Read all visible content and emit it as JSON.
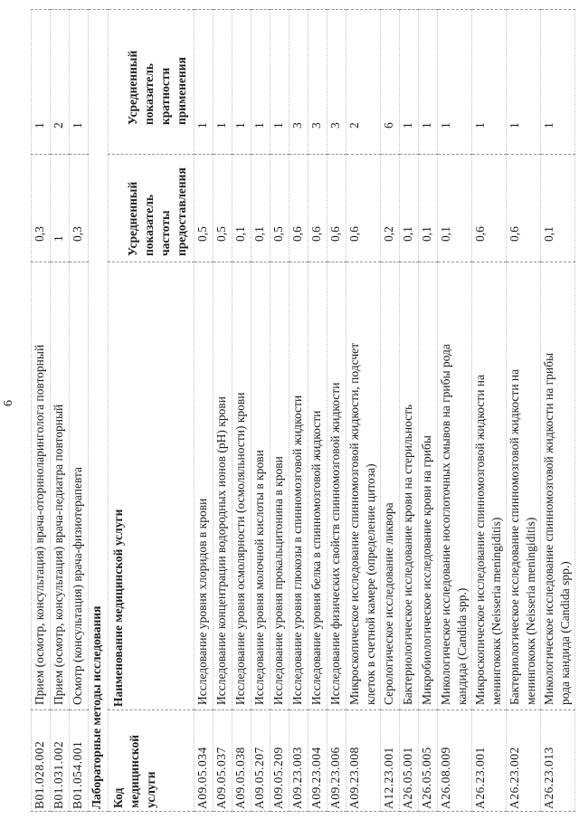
{
  "page_number": "6",
  "table": {
    "section_title": "Лабораторные методы исследования",
    "headers": {
      "code": "Код\nмедицинской\nуслуги",
      "name": "Наименование медицинской услуги",
      "frequency": "Усредненный\nпоказатель\nчастоты\nпредоставления",
      "multiplicity": "Усредненный\nпоказатель\nкратности\nприменения"
    },
    "continued_rows": [
      {
        "code": "B01.028.002",
        "name": "Прием (осмотр, консультация) врача-оториноларинголога повторный",
        "frequency": "0,3",
        "multiplicity": "1"
      },
      {
        "code": "B01.031.002",
        "name": "Прием (осмотр, консультация) врача-педиатра повторный",
        "frequency": "1",
        "multiplicity": "2"
      },
      {
        "code": "B01.054.001",
        "name": "Осмотр (консультация) врача-физиотерапевта",
        "frequency": "0,3",
        "multiplicity": "1"
      }
    ],
    "rows": [
      {
        "code": "A09.05.034",
        "name": "Исследование уровня хлоридов в крови",
        "frequency": "0,5",
        "multiplicity": "1"
      },
      {
        "code": "A09.05.037",
        "name": "Исследование концентрации водородных ионов (pH) крови",
        "frequency": "0,5",
        "multiplicity": "1"
      },
      {
        "code": "A09.05.038",
        "name": "Исследование уровня осмолярности (осмоляльности) крови",
        "frequency": "0,1",
        "multiplicity": "1"
      },
      {
        "code": "A09.05.207",
        "name": "Исследование уровня молочной кислоты в крови",
        "frequency": "0,1",
        "multiplicity": "1"
      },
      {
        "code": "A09.05.209",
        "name": "Исследование уровня прокальцитонина в крови",
        "frequency": "0,5",
        "multiplicity": "1"
      },
      {
        "code": "A09.23.003",
        "name": "Исследование уровня глюкозы в спинномозговой жидкости",
        "frequency": "0,6",
        "multiplicity": "3"
      },
      {
        "code": "A09.23.004",
        "name": "Исследование уровня белка в спинномозговой жидкости",
        "frequency": "0,6",
        "multiplicity": "3"
      },
      {
        "code": "A09.23.006",
        "name": "Исследование физических свойств спинномозговой жидкости",
        "frequency": "0,6",
        "multiplicity": "3"
      },
      {
        "code": "A09.23.008",
        "name": "Микроскопическое исследование спинномозговой жидкости, подсчет\nклеток в счетной камере (определение цитоза)",
        "frequency": "0,6",
        "multiplicity": "2"
      },
      {
        "code": "A12.23.001",
        "name": "Серологическое исследование ликвора",
        "frequency": "0,2",
        "multiplicity": "6"
      },
      {
        "code": "A26.05.001",
        "name": "Бактериологическое исследование крови на стерильность",
        "frequency": "0,1",
        "multiplicity": "1"
      },
      {
        "code": "A26.05.005",
        "name": "Микробиологическое исследование крови на грибы",
        "frequency": "0,1",
        "multiplicity": "1"
      },
      {
        "code": "A26.08.009",
        "name": "Микологическое исследование носоглоточных смывов на грибы рода\nкандида (Candida spp.)",
        "frequency": "0,1",
        "multiplicity": "1"
      },
      {
        "code": "A26.23.001",
        "name": "Микроскопическое исследование спинномозговой жидкости на\nменингококк (Neisseria meningiditis)",
        "frequency": "0,6",
        "multiplicity": "1"
      },
      {
        "code": "A26.23.002",
        "name": "Бактериологическое исследование спинномозговой жидкости на\nменингококк (Neisseria meningiditis)",
        "frequency": "0,6",
        "multiplicity": "1"
      },
      {
        "code": "A26.23.013",
        "name": "Микологическое исследование спинномозговой жидкости на грибы\nрода кандида (Candida spp.)",
        "frequency": "0,1",
        "multiplicity": "1"
      }
    ]
  }
}
